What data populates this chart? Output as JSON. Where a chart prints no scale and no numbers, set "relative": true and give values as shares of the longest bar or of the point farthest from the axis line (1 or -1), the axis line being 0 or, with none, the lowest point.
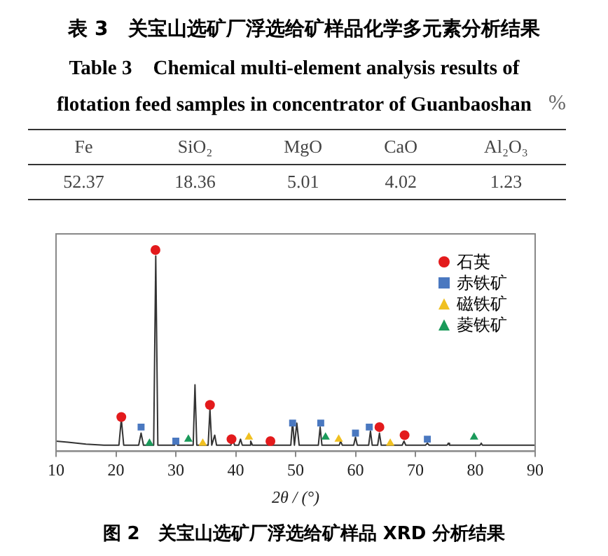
{
  "chart_data": [
    {
      "type": "other",
      "title": "表 3　关宝山选矿厂浮选给矿样品化学多元素分析结果",
      "subtitle": "Table 3　Chemical multi-element analysis results of flotation feed samples in concentrator of Guanbaoshan",
      "categories": [
        "Fe",
        "SiO₂",
        "MgO",
        "CaO",
        "Al₂O₃"
      ],
      "values": [
        52.37,
        18.36,
        5.01,
        4.02,
        1.23
      ],
      "data_labels": true,
      "annotations": [
        "%"
      ]
    },
    {
      "type": "line",
      "title": "图 2　关宝山选矿厂浮选给矿样品 XRD 分析结果",
      "xlabel": "2θ / (°)",
      "relative": true,
      "xlim": [
        10,
        90
      ],
      "xticks": [
        10,
        20,
        30,
        40,
        50,
        60,
        70,
        80,
        90
      ],
      "tick_labels": "x",
      "grid": false,
      "legend": "top right",
      "series": [
        {
          "color": "#333333",
          "marker": "none",
          "x": [
            10,
            12,
            15,
            18,
            20.5,
            20.9,
            21.3,
            23.8,
            24.2,
            24.6,
            26.3,
            26.65,
            27.0,
            29.8,
            30.0,
            30.3,
            32.9,
            33.2,
            33.5,
            35.4,
            35.7,
            36.0,
            36.5,
            36.8,
            39.2,
            39.5,
            39.8,
            40.5,
            40.8,
            41.1,
            42.3,
            42.5,
            42.8,
            45.6,
            45.8,
            46.0,
            49.2,
            49.5,
            49.8,
            50.2,
            50.6,
            53.8,
            54.1,
            54.4,
            57.3,
            57.5,
            57.8,
            59.7,
            60.0,
            60.3,
            62.2,
            62.5,
            62.8,
            63.7,
            64.0,
            64.3,
            67.8,
            68.1,
            68.4,
            71.7,
            72.0,
            72.3,
            75.3,
            75.5,
            75.7,
            80.8,
            81.0,
            81.2,
            90
          ],
          "values": [
            0.05,
            0.045,
            0.035,
            0.03,
            0.03,
            0.16,
            0.03,
            0.03,
            0.09,
            0.03,
            0.03,
            0.97,
            0.03,
            0.03,
            0.05,
            0.03,
            0.03,
            0.33,
            0.03,
            0.03,
            0.21,
            0.03,
            0.08,
            0.03,
            0.03,
            0.07,
            0.03,
            0.03,
            0.06,
            0.03,
            0.03,
            0.05,
            0.03,
            0.03,
            0.04,
            0.03,
            0.03,
            0.15,
            0.03,
            0.14,
            0.03,
            0.03,
            0.12,
            0.03,
            0.03,
            0.05,
            0.03,
            0.03,
            0.07,
            0.03,
            0.03,
            0.1,
            0.03,
            0.03,
            0.09,
            0.03,
            0.03,
            0.05,
            0.03,
            0.03,
            0.04,
            0.03,
            0.03,
            0.04,
            0.03,
            0.03,
            0.04,
            0.03,
            0.03
          ]
        },
        {
          "type": "scatter",
          "name": "石英",
          "color": "#e31a1c",
          "marker": "circle",
          "x": [
            20.9,
            26.6,
            35.7,
            39.3,
            45.8,
            64.0,
            68.2
          ],
          "values": [
            0.17,
            1,
            0.23,
            0.06,
            0.05,
            0.12,
            0.08
          ]
        },
        {
          "type": "scatter",
          "name": "赤铁矿",
          "color": "#4a78c0",
          "marker": "square",
          "x": [
            24.2,
            30.0,
            49.5,
            54.2,
            60.0,
            62.3,
            72.0
          ],
          "values": [
            0.12,
            0.05,
            0.14,
            0.14,
            0.09,
            0.12,
            0.06
          ]
        },
        {
          "type": "scatter",
          "name": "磁铁矿",
          "color": "#f0c020",
          "marker": "triangle",
          "x": [
            34.5,
            42.2,
            57.2,
            65.8
          ],
          "values": [
            0.04,
            0.07,
            0.06,
            0.04
          ]
        },
        {
          "type": "scatter",
          "name": "菱铁矿",
          "color": "#1a9a5a",
          "marker": "triangle",
          "x": [
            25.6,
            32.1,
            55.0,
            79.8
          ],
          "values": [
            0.04,
            0.06,
            0.07,
            0.07
          ]
        }
      ]
    }
  ]
}
